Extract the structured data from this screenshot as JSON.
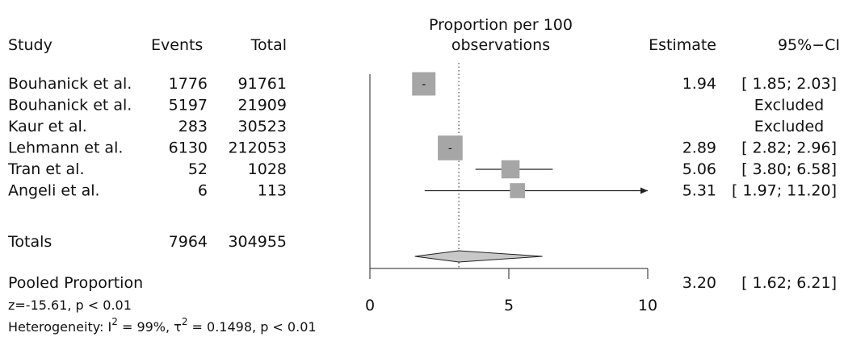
{
  "chart_data": {
    "type": "forest",
    "header": {
      "study": "Study",
      "events": "Events",
      "total": "Total",
      "plot_title_line1": "Proportion per 100",
      "plot_title_line2": "observations",
      "estimate": "Estimate",
      "ci": "95%−CI"
    },
    "studies": [
      {
        "study": "Bouhanick et al.",
        "events": "1776",
        "total": "91761",
        "estimate": 1.94,
        "lower": 1.85,
        "upper": 2.03,
        "weight": 0.33,
        "estimate_text": "1.94",
        "ci_text": "[ 1.85; 2.03]",
        "excluded": false,
        "box_label": "-"
      },
      {
        "study": "Bouhanick et al.",
        "events": "5197",
        "total": "21909",
        "excluded": true,
        "ci_text": "Excluded"
      },
      {
        "study": "Kaur et al.",
        "events": "283",
        "total": "30523",
        "excluded": true,
        "ci_text": "Excluded"
      },
      {
        "study": "Lehmann et al.",
        "events": "6130",
        "total": "212053",
        "estimate": 2.89,
        "lower": 2.82,
        "upper": 2.96,
        "weight": 0.38,
        "estimate_text": "2.89",
        "ci_text": "[ 2.82; 2.96]",
        "excluded": false,
        "box_label": "-"
      },
      {
        "study": "Tran et al.",
        "events": "52",
        "total": "1028",
        "estimate": 5.06,
        "lower": 3.8,
        "upper": 6.58,
        "weight": 0.17,
        "estimate_text": "5.06",
        "ci_text": "[ 3.80; 6.58]",
        "excluded": false,
        "box_label": ""
      },
      {
        "study": "Angeli et al.",
        "events": "6",
        "total": "113",
        "estimate": 5.31,
        "lower": 1.97,
        "upper": 11.2,
        "weight": 0.1,
        "estimate_text": "5.31",
        "ci_text": "[ 1.97; 11.20]",
        "excluded": false,
        "box_label": ""
      }
    ],
    "totals": {
      "label": "Totals",
      "events": "7964",
      "total": "304955"
    },
    "pooled": {
      "label": "Pooled Proportion",
      "estimate": 3.2,
      "lower": 1.62,
      "upper": 6.21,
      "estimate_text": "3.20",
      "ci_text": "[ 1.62; 6.21]"
    },
    "axis": {
      "min": 0,
      "max": 10,
      "ticks": [
        0,
        5,
        10
      ],
      "reference_line": 3.2,
      "reference_style": "dotted"
    },
    "footnotes": {
      "test": "z=-15.61, p < 0.01",
      "heterogeneity_prefix": "Heterogeneity:  I",
      "i2_sup": "2",
      "i2_value": " = 99%,  τ",
      "tau2_sup": "2",
      "tau2_value": " = 0.1498,   p < 0.01"
    },
    "colors": {
      "box": "#a6a6a6",
      "line": "#222222",
      "diamond": "#c8c8c8"
    }
  }
}
